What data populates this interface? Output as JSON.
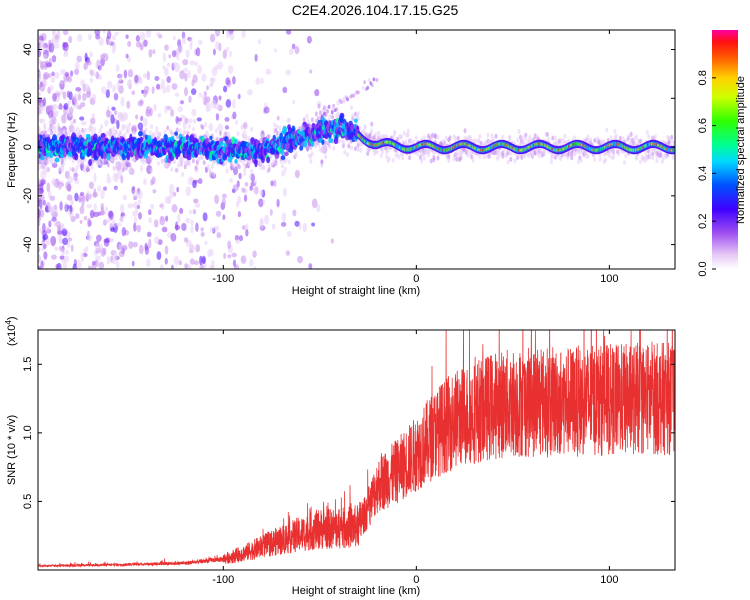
{
  "title": "C2E4.2026.104.17.15.G25",
  "chart_data": [
    {
      "type": "heatmap",
      "title": "C2E4.2026.104.17.15.G25",
      "xlabel": "Height of straight line (km)",
      "ylabel": "Frequency (Hz)",
      "xlim": [
        -196,
        134
      ],
      "ylim": [
        -50,
        48
      ],
      "xticks": [
        -100,
        0,
        100
      ],
      "yticks": [
        -40,
        -20,
        0,
        20,
        40
      ],
      "ridge_frequency_hz": [
        {
          "x": -180,
          "y": 0
        },
        {
          "x": -120,
          "y": 0
        },
        {
          "x": -80,
          "y": -2
        },
        {
          "x": -60,
          "y": 4
        },
        {
          "x": -40,
          "y": 8
        },
        {
          "x": -33,
          "y": 6
        },
        {
          "x": -20,
          "y": 1
        },
        {
          "x": 0,
          "y": 0
        },
        {
          "x": 50,
          "y": 0
        },
        {
          "x": 100,
          "y": 0
        },
        {
          "x": 134,
          "y": 0
        }
      ],
      "colorbar": {
        "label": "Normalized spectral amplitude",
        "min": 0.0,
        "max": 1.0,
        "ticks": [
          "0.0",
          "0.2",
          "0.4",
          "0.6",
          "0.8"
        ]
      }
    },
    {
      "type": "line",
      "xlabel": "Height of straight line (km)",
      "ylabel": "SNR (10 * v/v)",
      "scale_label": "(x10",
      "scale_exponent": "4",
      "scale_suffix": ")",
      "xlim": [
        -196,
        134
      ],
      "ylim": [
        0,
        1.75
      ],
      "xticks": [
        -100,
        0,
        100
      ],
      "yticks": [
        "0.5",
        "1.0",
        "1.5"
      ],
      "series": [
        {
          "name": "SNR",
          "color": "#e83030",
          "envelope_x": [
            -196,
            -150,
            -120,
            -100,
            -90,
            -80,
            -70,
            -60,
            -50,
            -40,
            -30,
            -25,
            -20,
            -10,
            0,
            10,
            20,
            30,
            40,
            50,
            60,
            80,
            100,
            120,
            134
          ],
          "envelope_y": [
            0.03,
            0.04,
            0.05,
            0.08,
            0.12,
            0.17,
            0.22,
            0.26,
            0.3,
            0.3,
            0.32,
            0.45,
            0.62,
            0.72,
            0.85,
            1.0,
            1.1,
            1.15,
            1.2,
            1.22,
            1.22,
            1.23,
            1.24,
            1.25,
            1.25
          ]
        }
      ]
    }
  ],
  "colors": {
    "signal": "#e83030",
    "axis": "#000000"
  }
}
